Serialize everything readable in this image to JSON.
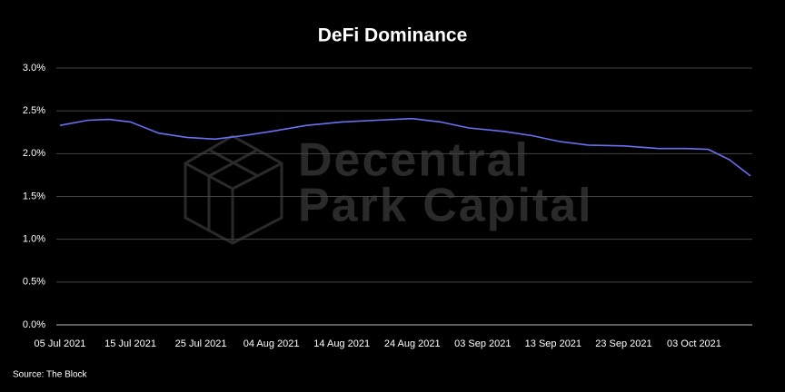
{
  "chart_data": {
    "type": "line",
    "title": "DeFi Dominance",
    "source": "Source: The Block",
    "watermark": [
      "Decentral",
      "Park Capital"
    ],
    "x": [
      "2021-07-05",
      "2021-07-09",
      "2021-07-12",
      "2021-07-15",
      "2021-07-19",
      "2021-07-23",
      "2021-07-27",
      "2021-07-31",
      "2021-08-04",
      "2021-08-09",
      "2021-08-14",
      "2021-08-19",
      "2021-08-24",
      "2021-08-28",
      "2021-09-01",
      "2021-09-06",
      "2021-09-10",
      "2021-09-14",
      "2021-09-18",
      "2021-09-23",
      "2021-09-28",
      "2021-10-02",
      "2021-10-05",
      "2021-10-08",
      "2021-10-11"
    ],
    "series": [
      {
        "name": "DeFi Dominance",
        "color": "#6b6ff2",
        "values": [
          2.33,
          2.39,
          2.4,
          2.37,
          2.24,
          2.19,
          2.17,
          2.21,
          2.26,
          2.33,
          2.37,
          2.39,
          2.41,
          2.37,
          2.3,
          2.26,
          2.21,
          2.14,
          2.1,
          2.09,
          2.06,
          2.06,
          2.05,
          1.93,
          1.74
        ]
      }
    ],
    "xlim": [
      "2021-07-05",
      "2021-10-11"
    ],
    "xticks": [
      {
        "value": "2021-07-05",
        "label": "05 Jul 2021"
      },
      {
        "value": "2021-07-15",
        "label": "15 Jul 2021"
      },
      {
        "value": "2021-07-25",
        "label": "25 Jul 2021"
      },
      {
        "value": "2021-08-04",
        "label": "04 Aug 2021"
      },
      {
        "value": "2021-08-14",
        "label": "14 Aug 2021"
      },
      {
        "value": "2021-08-24",
        "label": "24 Aug 2021"
      },
      {
        "value": "2021-09-03",
        "label": "03 Sep 2021"
      },
      {
        "value": "2021-09-13",
        "label": "13 Sep 2021"
      },
      {
        "value": "2021-09-23",
        "label": "23 Sep 2021"
      },
      {
        "value": "2021-10-03",
        "label": "03 Oct 2021"
      }
    ],
    "ylim": [
      0,
      3
    ],
    "yticks": [
      {
        "value": 0,
        "label": "0.0%"
      },
      {
        "value": 0.5,
        "label": "0.5%"
      },
      {
        "value": 1,
        "label": "1.0%"
      },
      {
        "value": 1.5,
        "label": "1.5%"
      },
      {
        "value": 2,
        "label": "2.0%"
      },
      {
        "value": 2.5,
        "label": "2.5%"
      },
      {
        "value": 3,
        "label": "3.0%"
      }
    ],
    "grid": true
  }
}
